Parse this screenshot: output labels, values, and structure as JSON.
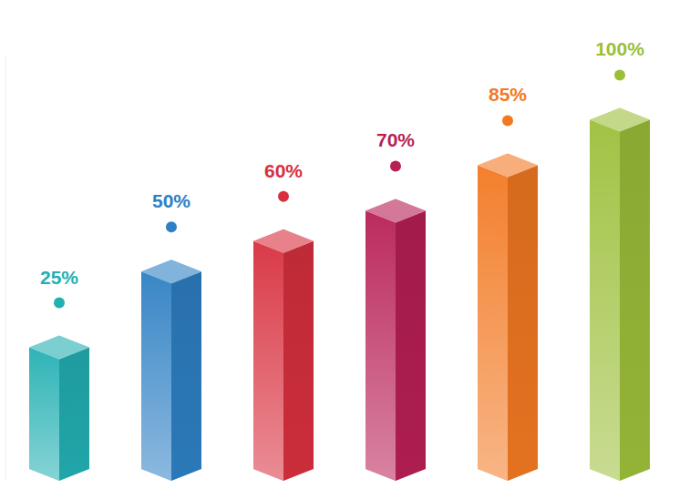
{
  "chart_data": {
    "type": "bar",
    "categories": [
      null,
      null,
      null,
      null,
      null,
      null
    ],
    "values": [
      25,
      50,
      60,
      70,
      85,
      100
    ],
    "value_labels": [
      "25%",
      "50%",
      "60%",
      "70%",
      "85%",
      "100%"
    ],
    "colors": [
      "#23b0b3",
      "#2e80c4",
      "#d8303e",
      "#b81f55",
      "#f27922",
      "#9cbf3a"
    ],
    "ylim": [
      -15,
      125
    ],
    "data_labels": true,
    "tick_labels": false,
    "grid": false
  }
}
